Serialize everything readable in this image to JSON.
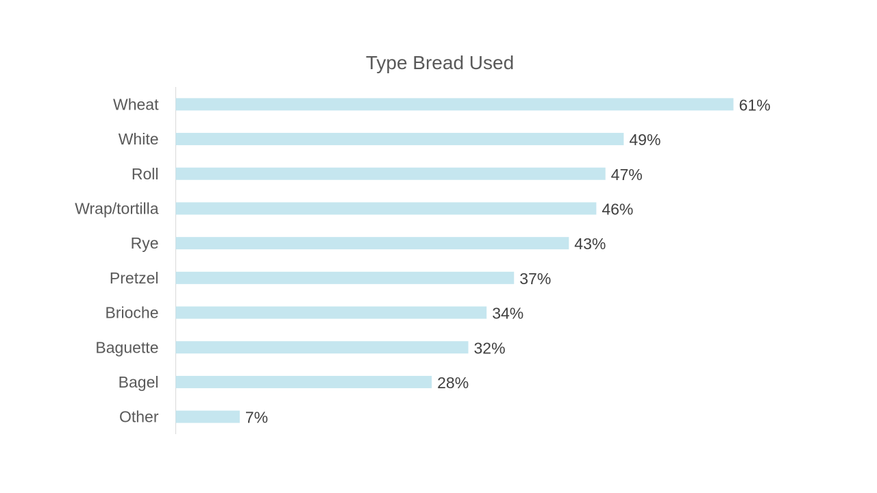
{
  "chart_data": {
    "type": "bar",
    "orientation": "horizontal",
    "title": "Type Bread Used",
    "categories": [
      "Wheat",
      "White",
      "Roll",
      "Wrap/tortilla",
      "Rye",
      "Pretzel",
      "Brioche",
      "Baguette",
      "Bagel",
      "Other"
    ],
    "values": [
      61,
      49,
      47,
      46,
      43,
      37,
      34,
      32,
      28,
      7
    ],
    "value_labels": [
      "61%",
      "49%",
      "47%",
      "46%",
      "43%",
      "37%",
      "34%",
      "32%",
      "28%",
      "7%"
    ],
    "unit": "%",
    "xlim": [
      0,
      61
    ],
    "grid": false,
    "legend": "none",
    "colors": {
      "bar": "#c5e6ef",
      "axis": "#d9d9d9",
      "category_text": "#595959",
      "value_text": "#404040",
      "title_text": "#595959"
    }
  }
}
